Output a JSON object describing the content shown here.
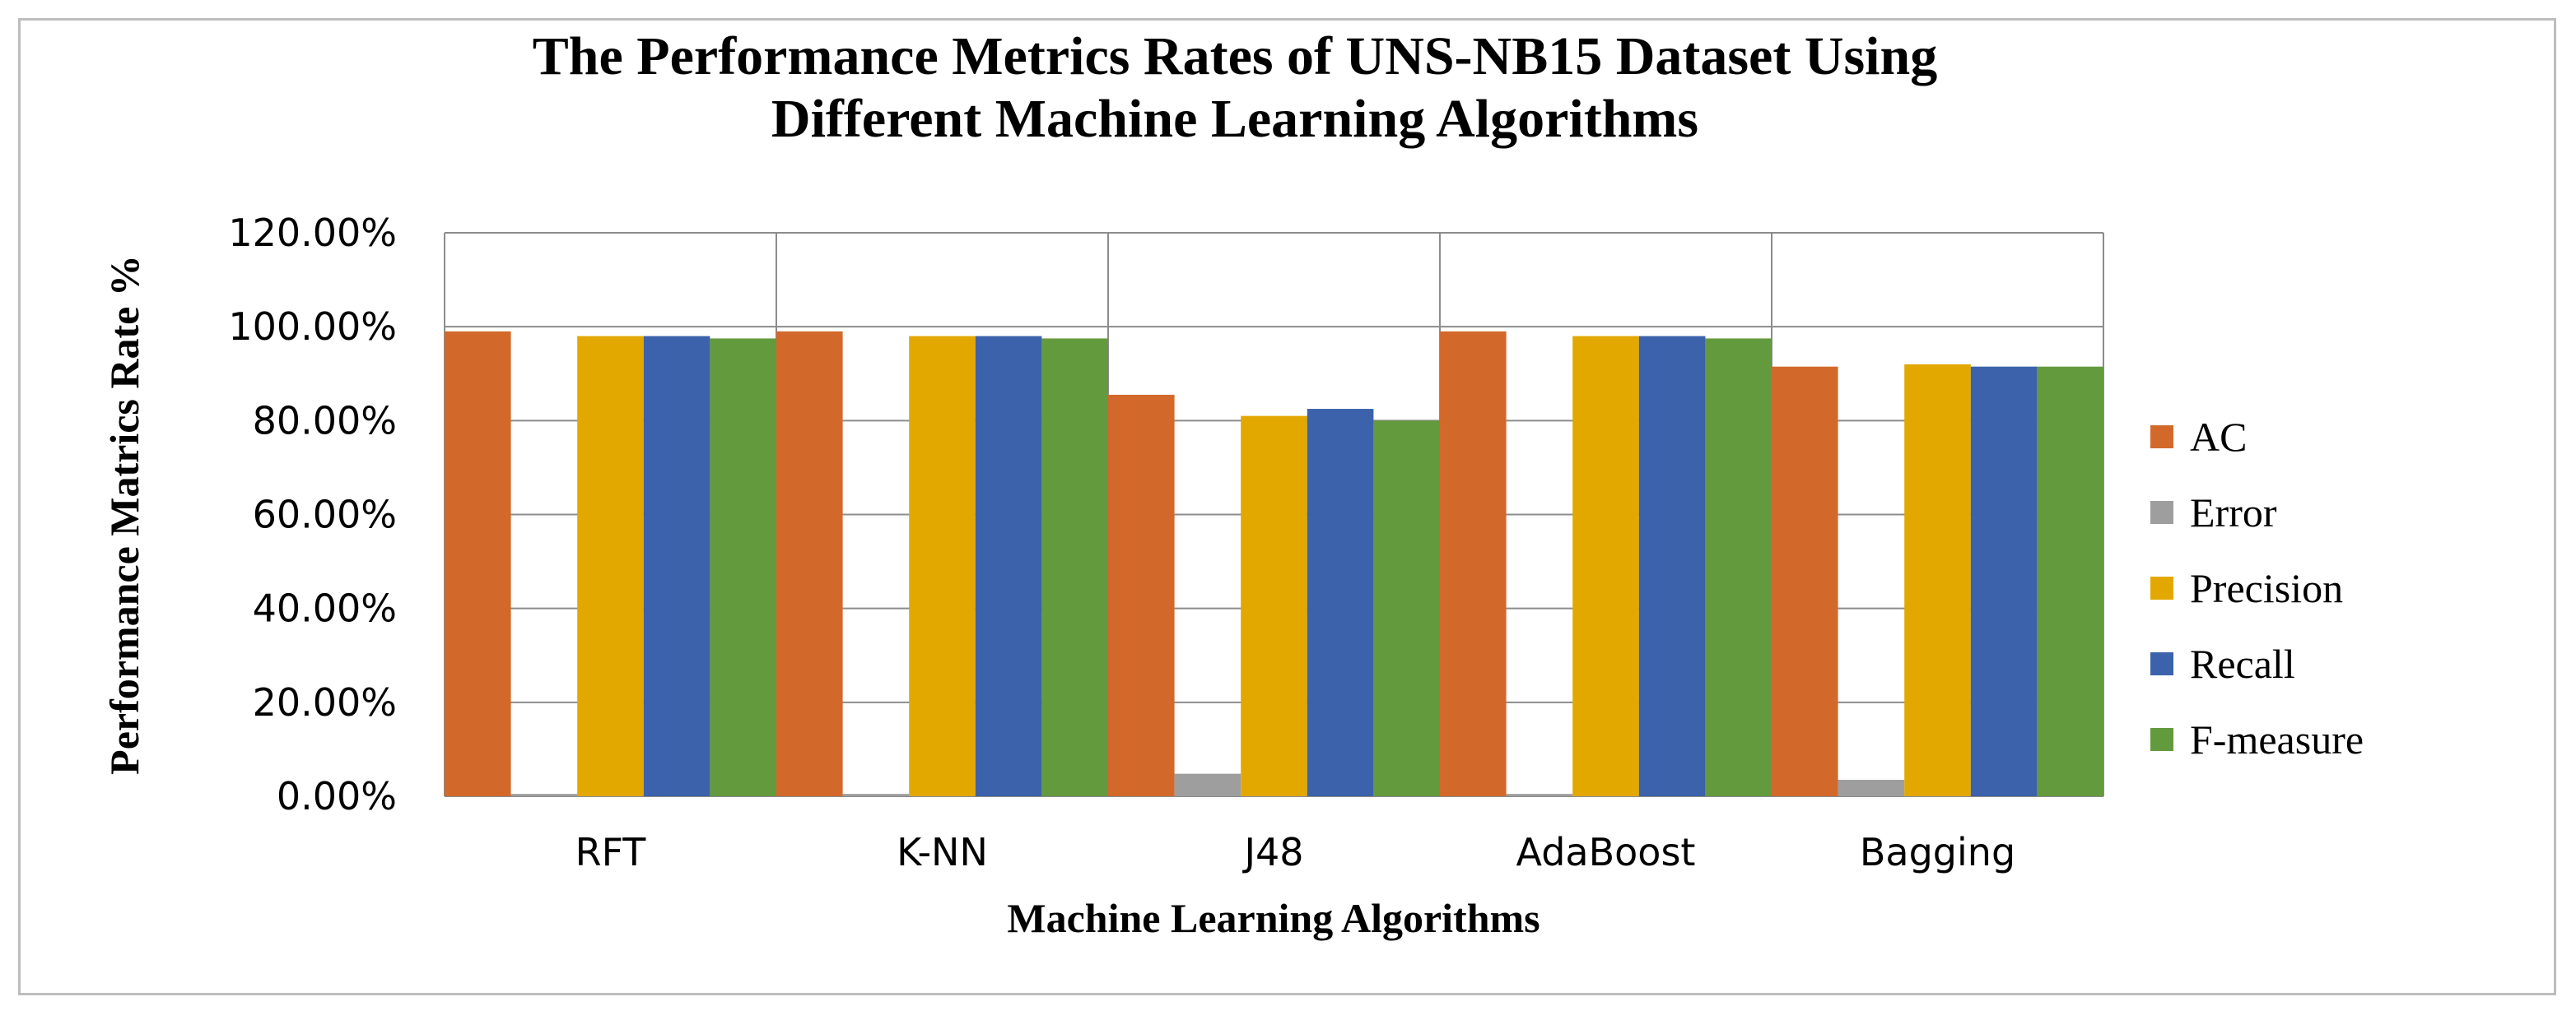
{
  "chart_data": {
    "type": "bar",
    "title_lines": [
      "The Performance Metrics Rates of UNS-NB15 Dataset Using",
      "Different Machine Learning Algorithms"
    ],
    "xlabel": "Machine Learning Algorithms",
    "ylabel": "Performance Matrics Rate %",
    "categories": [
      "RFT",
      "K-NN",
      "J48",
      "AdaBoost",
      "Bagging"
    ],
    "ylim": [
      0,
      1.2
    ],
    "yticks": [
      {
        "value": 0.0,
        "label": "0.00%"
      },
      {
        "value": 0.2,
        "label": "20.00%"
      },
      {
        "value": 0.4,
        "label": "40.00%"
      },
      {
        "value": 0.6,
        "label": "60.00%"
      },
      {
        "value": 0.8,
        "label": "80.00%"
      },
      {
        "value": 1.0,
        "label": "100.00%"
      },
      {
        "value": 1.2,
        "label": "120.00%"
      }
    ],
    "grid": "horizontal and category dividers",
    "legend_position": "right",
    "series": [
      {
        "name": "AC",
        "color": "#D2692B",
        "values": [
          0.99,
          0.99,
          0.855,
          0.99,
          0.915
        ]
      },
      {
        "name": "Error",
        "color": "#9E9E9E",
        "values": [
          0.005,
          0.005,
          0.048,
          0.005,
          0.035
        ]
      },
      {
        "name": "Precision",
        "color": "#E2A800",
        "values": [
          0.98,
          0.98,
          0.81,
          0.98,
          0.92
        ]
      },
      {
        "name": "Recall",
        "color": "#3B62AA",
        "values": [
          0.98,
          0.98,
          0.825,
          0.98,
          0.915
        ]
      },
      {
        "name": "F-measure",
        "color": "#649A3E",
        "values": [
          0.975,
          0.975,
          0.8,
          0.975,
          0.915
        ]
      }
    ]
  }
}
